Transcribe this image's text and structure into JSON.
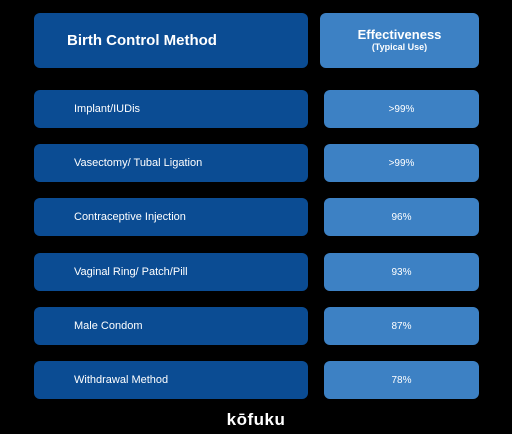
{
  "chart_data": {
    "type": "table",
    "columns": [
      "Birth Control Method",
      "Effectiveness",
      "(Typical Use)"
    ],
    "rows": [
      {
        "method": "Implant/IUDis",
        "effectiveness": ">99%"
      },
      {
        "method": "Vasectomy/ Tubal Ligation",
        "effectiveness": ">99%"
      },
      {
        "method": "Contraceptive Injection",
        "effectiveness": "96%"
      },
      {
        "method": "Vaginal Ring/ Patch/Pill",
        "effectiveness": "93%"
      },
      {
        "method": "Male Condom",
        "effectiveness": "87%"
      },
      {
        "method": "Withdrawal Method",
        "effectiveness": "78%"
      }
    ]
  },
  "brand": "kōfuku",
  "colors": {
    "background": "#000000",
    "method_cell": "#0b4c93",
    "value_cell": "#3d81c4",
    "text": "#ffffff"
  }
}
